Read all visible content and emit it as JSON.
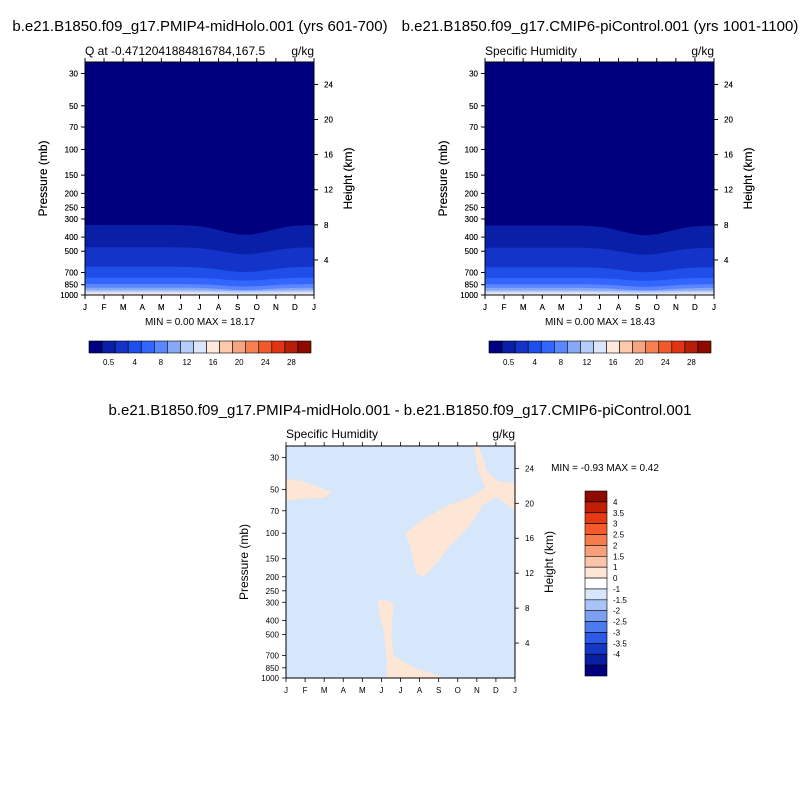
{
  "panels": {
    "p1": {
      "title": "b.e21.B1850.f09_g17.PMIP4-midHolo.001 (yrs 601-700)",
      "left_sub": "Q at -0.4712041884816784,167.5",
      "right_sub": "g/kg",
      "stats": "MIN =   0.00 MAX =  18.17"
    },
    "p2": {
      "title": "b.e21.B1850.f09_g17.CMIP6-piControl.001 (yrs 1001-1100)",
      "left_sub": "Specific Humidity",
      "right_sub": "g/kg",
      "stats": "MIN =   0.00 MAX =  18.43"
    },
    "p3": {
      "title": "b.e21.B1850.f09_g17.PMIP4-midHolo.001 - b.e21.B1850.f09_g17.CMIP6-piControl.001",
      "left_sub": "Specific Humidity",
      "right_sub": "g/kg",
      "stats": "MIN =  -0.93 MAX =   0.42"
    }
  },
  "chart_data": [
    {
      "type": "heatmap",
      "title": "b.e21.B1850.f09_g17.PMIP4-midHolo.001 (yrs 601-700)",
      "xlabel": "",
      "ylabel": "Pressure (mb)",
      "y2label": "Height (km)",
      "x_ticks": [
        "J",
        "F",
        "M",
        "A",
        "M",
        "J",
        "J",
        "A",
        "S",
        "O",
        "N",
        "D",
        "J"
      ],
      "y_ticks": [
        30,
        50,
        70,
        100,
        150,
        200,
        250,
        300,
        400,
        500,
        700,
        850,
        1000
      ],
      "y2_ticks": [
        4,
        8,
        12,
        16,
        20,
        24
      ],
      "y_scale": "log",
      "ylim": [
        1000,
        25
      ],
      "levels": [
        0.5,
        2,
        4,
        6,
        8,
        10,
        12,
        14,
        16,
        18,
        20,
        22,
        24,
        26,
        28
      ],
      "colorbar_labels": [
        "0.5",
        "4",
        "8",
        "12",
        "16",
        "20",
        "24",
        "28"
      ],
      "colors": [
        "#00007f",
        "#0a1fa8",
        "#1433c8",
        "#1f4ee8",
        "#3366ff",
        "#5b86ff",
        "#88a8f4",
        "#b6cdfa",
        "#d9e6fb",
        "#fde9dc",
        "#fbc9ac",
        "#f7a482",
        "#f4814f",
        "#f05a2a",
        "#e03414",
        "#b81d08",
        "#8c0a00"
      ],
      "min": 0.0,
      "max": 18.17
    },
    {
      "type": "heatmap",
      "title": "b.e21.B1850.f09_g17.CMIP6-piControl.001 (yrs 1001-1100)",
      "xlabel": "",
      "ylabel": "Pressure (mb)",
      "y2label": "Height (km)",
      "x_ticks": [
        "J",
        "F",
        "M",
        "A",
        "M",
        "J",
        "J",
        "A",
        "S",
        "O",
        "N",
        "D",
        "J"
      ],
      "y_ticks": [
        30,
        50,
        70,
        100,
        150,
        200,
        250,
        300,
        400,
        500,
        700,
        850,
        1000
      ],
      "y2_ticks": [
        4,
        8,
        12,
        16,
        20,
        24
      ],
      "y_scale": "log",
      "ylim": [
        1000,
        25
      ],
      "levels": [
        0.5,
        2,
        4,
        6,
        8,
        10,
        12,
        14,
        16,
        18,
        20,
        22,
        24,
        26,
        28
      ],
      "colorbar_labels": [
        "0.5",
        "4",
        "8",
        "12",
        "16",
        "20",
        "24",
        "28"
      ],
      "min": 0.0,
      "max": 18.43
    },
    {
      "type": "heatmap",
      "title": "b.e21.B1850.f09_g17.PMIP4-midHolo.001 - b.e21.B1850.f09_g17.CMIP6-piControl.001",
      "xlabel": "",
      "ylabel": "Pressure (mb)",
      "y2label": "Height (km)",
      "x_ticks": [
        "J",
        "F",
        "M",
        "A",
        "M",
        "J",
        "J",
        "A",
        "S",
        "O",
        "N",
        "D",
        "J"
      ],
      "y_ticks": [
        30,
        50,
        70,
        100,
        150,
        200,
        250,
        300,
        400,
        500,
        700,
        850,
        1000
      ],
      "y2_ticks": [
        4,
        8,
        12,
        16,
        20,
        24
      ],
      "y_scale": "log",
      "ylim": [
        1000,
        25
      ],
      "levels": [
        -4,
        -3.5,
        -3,
        -2.5,
        -2,
        -1.5,
        -1,
        0,
        1,
        1.5,
        2,
        2.5,
        3,
        3.5,
        4
      ],
      "colorbar_labels": [
        "4",
        "3.5",
        "3",
        "2.5",
        "2",
        "1.5",
        "1",
        "0",
        "-1",
        "-1.5",
        "-2",
        "-2.5",
        "-3",
        "-3.5",
        "-4"
      ],
      "colors": [
        "#8c0a00",
        "#c01e06",
        "#e63a12",
        "#f45a2a",
        "#f77c4c",
        "#f9a07a",
        "#fbc4a8",
        "#fde6d6",
        "#ffffff",
        "#d6e6fb",
        "#a8c4f7",
        "#7c9ff4",
        "#4d7aee",
        "#2a5ae6",
        "#1438c4",
        "#0a1fa0",
        "#00007f"
      ],
      "min": -0.93,
      "max": 0.42
    }
  ]
}
